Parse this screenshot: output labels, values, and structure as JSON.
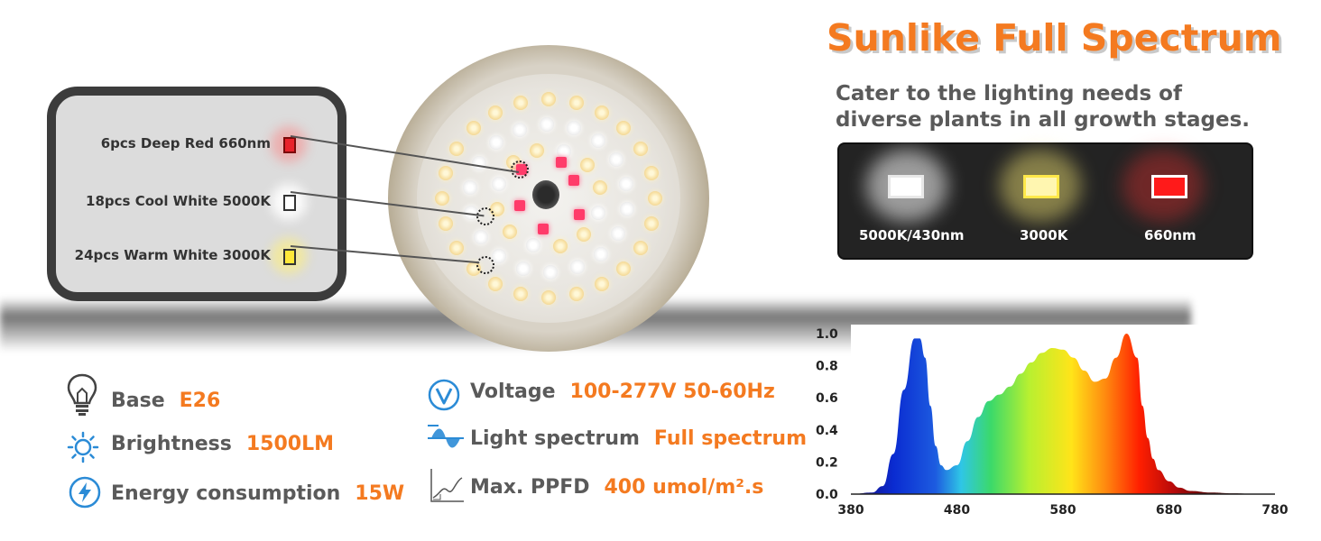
{
  "hero": {
    "title": "Sunlike Full Spectrum",
    "subtitle": "Cater to the lighting needs of diverse plants in all growth stages."
  },
  "callout": {
    "items": [
      {
        "label": "6pcs Deep Red 660nm",
        "color": "#e8222b"
      },
      {
        "label": "18pcs Cool White 5000K",
        "color": "#ffffff"
      },
      {
        "label": "24pcs Warm White 3000K",
        "color": "#ffe83a"
      }
    ]
  },
  "panel": {
    "chips": [
      {
        "label": "5000K/430nm",
        "color": "#ffffff"
      },
      {
        "label": "3000K",
        "color": "#fff6b0"
      },
      {
        "label": "660nm",
        "color": "#ff1a1a"
      }
    ]
  },
  "specs": [
    {
      "icon": "bulb-icon",
      "label": "Base",
      "value": "E26"
    },
    {
      "icon": "sun-icon",
      "label": "Brightness",
      "value": "1500LM"
    },
    {
      "icon": "lightning-icon",
      "label": "Energy consumption",
      "value": "15W"
    },
    {
      "icon": "voltage-icon",
      "label": "Voltage",
      "value": "100-277V 50-60Hz"
    },
    {
      "icon": "wave-icon",
      "label": "Light spectrum",
      "value": "Full spectrum"
    },
    {
      "icon": "graph-icon",
      "label": "Max. PPFD",
      "value": "400 umol/m².s"
    }
  ],
  "colors": {
    "accent": "#f47a20",
    "text": "#5a5a5a"
  },
  "chart_data": {
    "type": "area",
    "title": "",
    "xlabel": "",
    "ylabel": "",
    "xlim": [
      380,
      780
    ],
    "ylim": [
      0,
      1.0
    ],
    "x_ticks": [
      "380",
      "480",
      "580",
      "680",
      "780"
    ],
    "y_ticks": [
      "0.0",
      "0.2",
      "0.4",
      "0.6",
      "0.8",
      "1.0"
    ],
    "x": [
      380,
      400,
      410,
      420,
      430,
      440,
      445,
      450,
      455,
      460,
      465,
      470,
      480,
      490,
      500,
      510,
      520,
      530,
      540,
      550,
      560,
      570,
      580,
      590,
      600,
      610,
      620,
      630,
      640,
      650,
      655,
      660,
      665,
      670,
      680,
      690,
      700,
      720,
      740,
      760,
      780
    ],
    "values": [
      0.0,
      0.01,
      0.05,
      0.25,
      0.65,
      0.97,
      0.97,
      0.85,
      0.55,
      0.3,
      0.18,
      0.15,
      0.18,
      0.33,
      0.48,
      0.58,
      0.62,
      0.67,
      0.75,
      0.82,
      0.88,
      0.91,
      0.9,
      0.85,
      0.77,
      0.7,
      0.72,
      0.85,
      1.0,
      0.85,
      0.55,
      0.35,
      0.22,
      0.15,
      0.08,
      0.04,
      0.02,
      0.01,
      0.005,
      0.002,
      0.0
    ]
  }
}
